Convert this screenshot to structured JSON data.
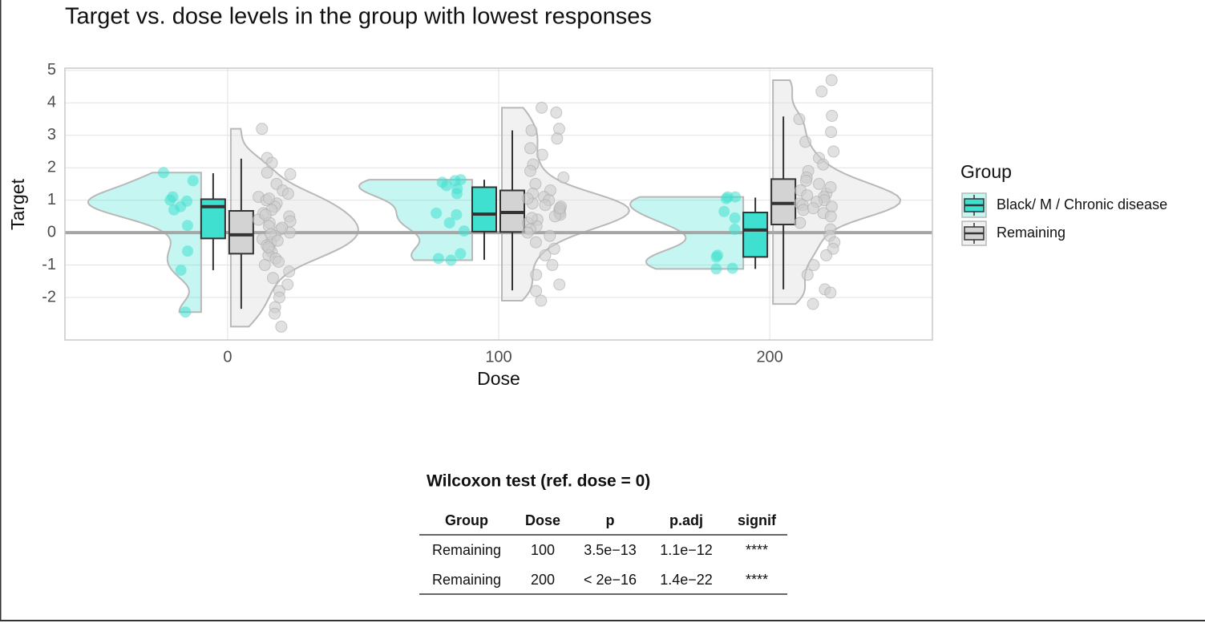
{
  "chart_data": {
    "type": "raincloud",
    "title": "Target vs. dose levels in the group with lowest responses",
    "x_label": "Dose",
    "y_label": "Target",
    "x": [
      0,
      100,
      200
    ],
    "xlim": [
      -60,
      260
    ],
    "xticks": [
      0,
      100,
      200
    ],
    "ylim": [
      -3.31,
      5.07
    ],
    "yticks": [
      -2,
      -1,
      0,
      1,
      2,
      3,
      4,
      5
    ],
    "hline": 0,
    "grid": true,
    "legend_title": "Group",
    "legend_position": "right",
    "series": [
      {
        "name": "Black/ M / Chronic disease",
        "color": "#40e0d0",
        "boxes": [
          {
            "min": -1.16,
            "q1": -0.18,
            "median": 0.8,
            "q3": 1.03,
            "max": 1.83
          },
          {
            "min": -0.84,
            "q1": 0.03,
            "median": 0.57,
            "q3": 1.4,
            "max": 1.63
          },
          {
            "min": -1.12,
            "q1": -0.75,
            "median": 0.08,
            "q3": 0.62,
            "max": 1.08
          }
        ],
        "points": [
          [
            1.85,
            1.6,
            1.1,
            1.0,
            0.97,
            0.8,
            0.7,
            0.22,
            -0.57,
            -1.16,
            -2.45
          ],
          [
            1.6,
            1.63,
            1.55,
            1.45,
            1.35,
            1.2,
            0.6,
            0.55,
            0.3,
            0.05,
            -0.65,
            -0.8,
            -0.85
          ],
          [
            1.1,
            1.1,
            1.05,
            0.65,
            0.45,
            0.1,
            -0.7,
            -0.75,
            -1.1,
            -1.12
          ]
        ]
      },
      {
        "name": "Remaining",
        "color": "#d3d3d3",
        "boxes": [
          {
            "min": -2.35,
            "q1": -0.65,
            "median": -0.07,
            "q3": 0.67,
            "max": 2.28
          },
          {
            "min": -1.78,
            "q1": 0.02,
            "median": 0.62,
            "q3": 1.3,
            "max": 3.15
          },
          {
            "min": -1.75,
            "q1": 0.25,
            "median": 0.9,
            "q3": 1.65,
            "max": 3.58
          }
        ],
        "points": [
          [
            3.2,
            2.3,
            2.15,
            1.85,
            1.8,
            1.5,
            1.3,
            1.2,
            1.1,
            1.0,
            0.9,
            0.8,
            0.7,
            0.6,
            0.5,
            0.4,
            0.3,
            0.2,
            0.1,
            0.0,
            -0.1,
            -0.2,
            -0.3,
            -0.4,
            -0.5,
            -0.6,
            -0.7,
            -0.8,
            -0.9,
            -1.0,
            -1.2,
            -1.4,
            -1.6,
            -1.8,
            -2.0,
            -2.3,
            -2.5,
            -2.9,
            0.35,
            -0.05,
            0.15,
            0.55,
            -0.25,
            1.05,
            -0.45
          ],
          [
            3.85,
            3.7,
            3.2,
            3.15,
            2.9,
            2.6,
            2.4,
            2.1,
            1.9,
            1.7,
            1.5,
            1.3,
            1.2,
            1.1,
            1.0,
            0.9,
            0.8,
            0.7,
            0.65,
            0.6,
            0.55,
            0.5,
            0.4,
            0.3,
            0.2,
            0.1,
            0.0,
            -0.1,
            -0.3,
            -0.5,
            -0.7,
            -1.0,
            -1.3,
            -1.6,
            -1.8,
            -2.1,
            0.75,
            0.45,
            0.85,
            1.05
          ],
          [
            4.7,
            4.35,
            3.6,
            3.5,
            3.1,
            2.8,
            2.5,
            2.3,
            2.1,
            1.9,
            1.7,
            1.6,
            1.5,
            1.3,
            1.2,
            1.1,
            1.0,
            0.95,
            0.9,
            0.85,
            0.8,
            0.7,
            0.6,
            0.5,
            0.3,
            0.1,
            -0.1,
            -0.3,
            -0.5,
            -0.7,
            -1.0,
            -1.3,
            -1.75,
            -1.85,
            -2.2,
            1.15,
            0.75,
            1.4
          ]
        ]
      }
    ]
  },
  "table": {
    "title": "Wilcoxon test (ref. dose = 0)",
    "columns": [
      "Group",
      "Dose",
      "p",
      "p.adj",
      "signif"
    ],
    "rows": [
      [
        "Remaining",
        "100",
        "3.5e−13",
        "1.1e−12",
        "****"
      ],
      [
        "Remaining",
        "200",
        "< 2e−16",
        "1.4e−22",
        "****"
      ]
    ]
  }
}
